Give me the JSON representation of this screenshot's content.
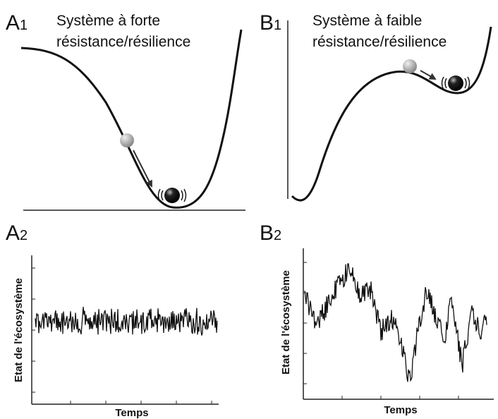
{
  "panels": {
    "a1": {
      "letter": "A",
      "sub": "1",
      "caption_line1": "Système à forte",
      "caption_line2": "résistance/résilience"
    },
    "b1": {
      "letter": "B",
      "sub": "1",
      "caption_line1": "Système à faible",
      "caption_line2": "résistance/résilience"
    },
    "a2": {
      "letter": "A",
      "sub": "2",
      "ylabel": "Etat de l'écosystème",
      "xlabel": "Temps"
    },
    "b2": {
      "letter": "B",
      "sub": "2",
      "ylabel": "Etat de l'écosystème",
      "xlabel": "Temps"
    }
  },
  "colors": {
    "ink": "#111111",
    "ball_start": "#9a9a9a",
    "ball_end": "#111111"
  }
}
